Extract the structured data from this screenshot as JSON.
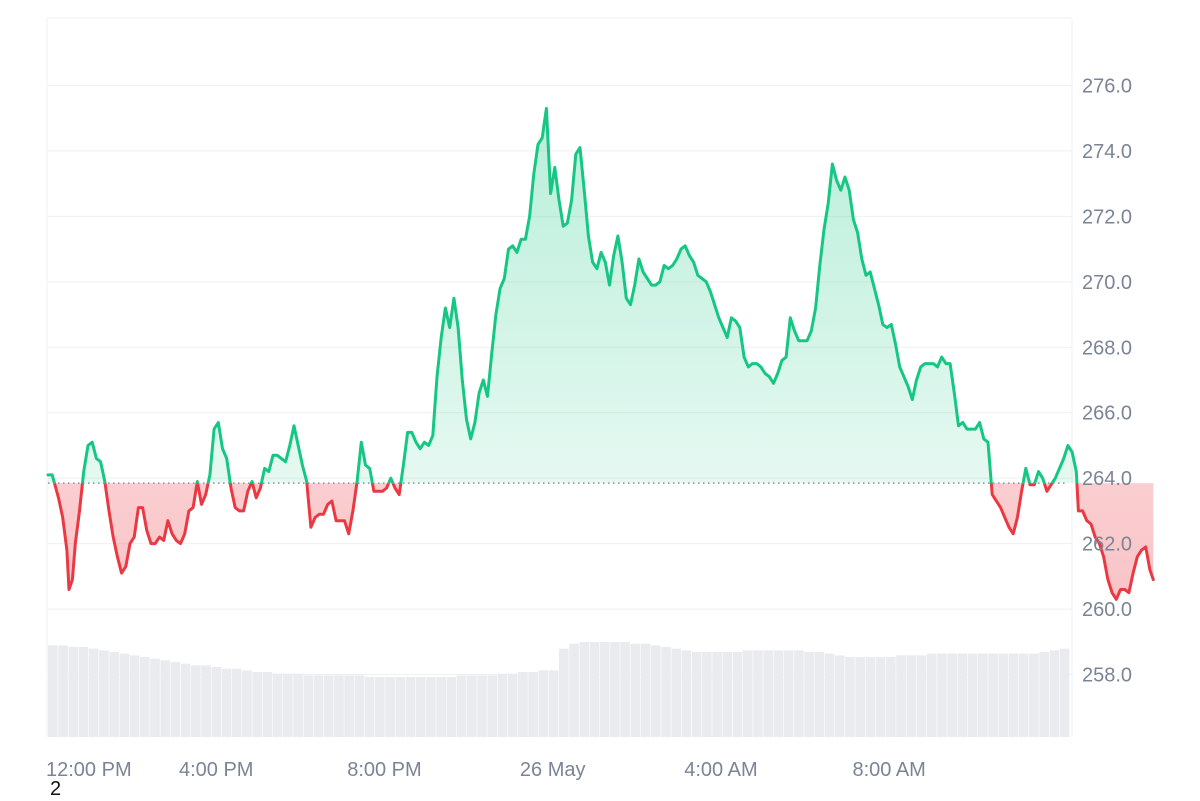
{
  "chart_data": {
    "type": "area",
    "baseline": 263.85,
    "ylim": [
      256,
      278
    ],
    "yticks": [
      "258.0",
      "260.0",
      "262.0",
      "264.0",
      "266.0",
      "268.0",
      "270.0",
      "272.0",
      "274.0",
      "276.0"
    ],
    "xticks": [
      {
        "label": "12:00 PM",
        "x": 0
      },
      {
        "label": "4:00 PM",
        "x": 4
      },
      {
        "label": "8:00 PM",
        "x": 8
      },
      {
        "label": "26 May",
        "x": 12
      },
      {
        "label": "4:00 AM",
        "x": 16
      },
      {
        "label": "8:00 AM",
        "x": 20
      }
    ],
    "xlim": [
      0,
      24.3
    ],
    "x_unit": "hours since 12:00 PM",
    "grid": true,
    "legend": "none",
    "colors": {
      "up": "#16c784",
      "down": "#ea3943",
      "baseline": "#8a8f99",
      "grid": "#eef0f3",
      "volume": "#e9ebef"
    },
    "series": [
      {
        "values": [
          [
            0.0,
            264.1
          ],
          [
            0.1,
            264.1
          ],
          [
            0.25,
            263.4
          ],
          [
            0.35,
            262.8
          ],
          [
            0.45,
            261.8
          ],
          [
            0.5,
            260.6
          ],
          [
            0.58,
            260.9
          ],
          [
            0.65,
            262.0
          ],
          [
            0.75,
            263.0
          ],
          [
            0.85,
            264.2
          ],
          [
            0.95,
            265.0
          ],
          [
            1.05,
            265.1
          ],
          [
            1.15,
            264.6
          ],
          [
            1.25,
            264.5
          ],
          [
            1.35,
            263.9
          ],
          [
            1.45,
            263.0
          ],
          [
            1.55,
            262.2
          ],
          [
            1.65,
            261.6
          ],
          [
            1.75,
            261.1
          ],
          [
            1.85,
            261.3
          ],
          [
            1.95,
            262.0
          ],
          [
            2.05,
            262.2
          ],
          [
            2.15,
            263.1
          ],
          [
            2.25,
            263.1
          ],
          [
            2.35,
            262.4
          ],
          [
            2.45,
            262.0
          ],
          [
            2.55,
            262.0
          ],
          [
            2.65,
            262.2
          ],
          [
            2.75,
            262.1
          ],
          [
            2.85,
            262.7
          ],
          [
            2.95,
            262.3
          ],
          [
            3.05,
            262.1
          ],
          [
            3.15,
            262.0
          ],
          [
            3.25,
            262.3
          ],
          [
            3.35,
            263.0
          ],
          [
            3.45,
            263.1
          ],
          [
            3.55,
            263.9
          ],
          [
            3.65,
            263.2
          ],
          [
            3.75,
            263.5
          ],
          [
            3.85,
            264.1
          ],
          [
            3.95,
            265.5
          ],
          [
            4.05,
            265.7
          ],
          [
            4.15,
            264.9
          ],
          [
            4.25,
            264.6
          ],
          [
            4.35,
            263.7
          ],
          [
            4.45,
            263.1
          ],
          [
            4.55,
            263.0
          ],
          [
            4.65,
            263.0
          ],
          [
            4.75,
            263.6
          ],
          [
            4.85,
            263.9
          ],
          [
            4.95,
            263.4
          ],
          [
            5.05,
            263.7
          ],
          [
            5.15,
            264.3
          ],
          [
            5.25,
            264.2
          ],
          [
            5.35,
            264.7
          ],
          [
            5.45,
            264.7
          ],
          [
            5.55,
            264.6
          ],
          [
            5.65,
            264.5
          ],
          [
            5.75,
            265.0
          ],
          [
            5.85,
            265.6
          ],
          [
            5.95,
            265.0
          ],
          [
            6.05,
            264.4
          ],
          [
            6.15,
            263.9
          ],
          [
            6.25,
            262.5
          ],
          [
            6.35,
            262.8
          ],
          [
            6.45,
            262.9
          ],
          [
            6.55,
            262.9
          ],
          [
            6.65,
            263.2
          ],
          [
            6.75,
            263.3
          ],
          [
            6.85,
            262.7
          ],
          [
            6.95,
            262.7
          ],
          [
            7.05,
            262.7
          ],
          [
            7.15,
            262.3
          ],
          [
            7.25,
            263.0
          ],
          [
            7.35,
            263.9
          ],
          [
            7.45,
            265.1
          ],
          [
            7.55,
            264.4
          ],
          [
            7.65,
            264.3
          ],
          [
            7.75,
            263.6
          ],
          [
            7.85,
            263.6
          ],
          [
            7.95,
            263.6
          ],
          [
            8.05,
            263.7
          ],
          [
            8.15,
            264.0
          ],
          [
            8.25,
            263.7
          ],
          [
            8.35,
            263.5
          ],
          [
            8.45,
            264.4
          ],
          [
            8.55,
            265.4
          ],
          [
            8.65,
            265.4
          ],
          [
            8.75,
            265.1
          ],
          [
            8.85,
            264.9
          ],
          [
            8.95,
            265.1
          ],
          [
            9.05,
            265.0
          ],
          [
            9.15,
            265.3
          ],
          [
            9.25,
            267.1
          ],
          [
            9.35,
            268.3
          ],
          [
            9.45,
            269.2
          ],
          [
            9.55,
            268.6
          ],
          [
            9.65,
            269.5
          ],
          [
            9.75,
            268.6
          ],
          [
            9.85,
            267.0
          ],
          [
            9.95,
            265.8
          ],
          [
            10.05,
            265.2
          ],
          [
            10.15,
            265.7
          ],
          [
            10.25,
            266.6
          ],
          [
            10.35,
            267.0
          ],
          [
            10.45,
            266.5
          ],
          [
            10.55,
            267.8
          ],
          [
            10.65,
            269.0
          ],
          [
            10.75,
            269.8
          ],
          [
            10.85,
            270.1
          ],
          [
            10.95,
            271.0
          ],
          [
            11.05,
            271.1
          ],
          [
            11.15,
            270.9
          ],
          [
            11.25,
            271.3
          ],
          [
            11.35,
            271.3
          ],
          [
            11.45,
            272.0
          ],
          [
            11.55,
            273.3
          ],
          [
            11.65,
            274.2
          ],
          [
            11.75,
            274.4
          ],
          [
            11.85,
            275.3
          ],
          [
            11.95,
            272.7
          ],
          [
            12.05,
            273.5
          ],
          [
            12.15,
            272.5
          ],
          [
            12.25,
            271.7
          ],
          [
            12.35,
            271.8
          ],
          [
            12.45,
            272.5
          ],
          [
            12.55,
            273.9
          ],
          [
            12.65,
            274.1
          ],
          [
            12.75,
            272.8
          ],
          [
            12.85,
            271.4
          ],
          [
            12.95,
            270.6
          ],
          [
            13.05,
            270.4
          ],
          [
            13.15,
            270.9
          ],
          [
            13.25,
            270.6
          ],
          [
            13.35,
            269.9
          ],
          [
            13.45,
            270.8
          ],
          [
            13.55,
            271.4
          ],
          [
            13.65,
            270.6
          ],
          [
            13.75,
            269.5
          ],
          [
            13.85,
            269.3
          ],
          [
            13.95,
            269.9
          ],
          [
            14.05,
            270.7
          ],
          [
            14.15,
            270.3
          ],
          [
            14.25,
            270.1
          ],
          [
            14.35,
            269.9
          ],
          [
            14.45,
            269.9
          ],
          [
            14.55,
            270.0
          ],
          [
            14.65,
            270.5
          ],
          [
            14.75,
            270.4
          ],
          [
            14.85,
            270.5
          ],
          [
            14.95,
            270.7
          ],
          [
            15.05,
            271.0
          ],
          [
            15.15,
            271.1
          ],
          [
            15.25,
            270.8
          ],
          [
            15.35,
            270.6
          ],
          [
            15.45,
            270.2
          ],
          [
            15.55,
            270.1
          ],
          [
            15.65,
            270.0
          ],
          [
            15.75,
            269.7
          ],
          [
            15.85,
            269.3
          ],
          [
            15.95,
            268.9
          ],
          [
            16.05,
            268.6
          ],
          [
            16.15,
            268.3
          ],
          [
            16.25,
            268.9
          ],
          [
            16.35,
            268.8
          ],
          [
            16.45,
            268.6
          ],
          [
            16.55,
            267.7
          ],
          [
            16.65,
            267.4
          ],
          [
            16.75,
            267.5
          ],
          [
            16.85,
            267.5
          ],
          [
            16.95,
            267.4
          ],
          [
            17.05,
            267.2
          ],
          [
            17.15,
            267.1
          ],
          [
            17.25,
            266.9
          ],
          [
            17.35,
            267.2
          ],
          [
            17.45,
            267.6
          ],
          [
            17.55,
            267.7
          ],
          [
            17.65,
            268.9
          ],
          [
            17.75,
            268.5
          ],
          [
            17.85,
            268.2
          ],
          [
            17.95,
            268.2
          ],
          [
            18.05,
            268.2
          ],
          [
            18.15,
            268.5
          ],
          [
            18.25,
            269.2
          ],
          [
            18.35,
            270.5
          ],
          [
            18.45,
            271.6
          ],
          [
            18.55,
            272.4
          ],
          [
            18.65,
            273.6
          ],
          [
            18.75,
            273.1
          ],
          [
            18.85,
            272.8
          ],
          [
            18.95,
            273.2
          ],
          [
            19.05,
            272.8
          ],
          [
            19.15,
            271.9
          ],
          [
            19.25,
            271.5
          ],
          [
            19.35,
            270.7
          ],
          [
            19.45,
            270.2
          ],
          [
            19.55,
            270.3
          ],
          [
            19.65,
            269.8
          ],
          [
            19.75,
            269.3
          ],
          [
            19.85,
            268.7
          ],
          [
            19.95,
            268.6
          ],
          [
            20.05,
            268.7
          ],
          [
            20.15,
            268.1
          ],
          [
            20.25,
            267.4
          ],
          [
            20.35,
            267.1
          ],
          [
            20.45,
            266.8
          ],
          [
            20.55,
            266.4
          ],
          [
            20.65,
            267.0
          ],
          [
            20.75,
            267.4
          ],
          [
            20.85,
            267.5
          ],
          [
            20.95,
            267.5
          ],
          [
            21.05,
            267.5
          ],
          [
            21.15,
            267.4
          ],
          [
            21.25,
            267.7
          ],
          [
            21.35,
            267.5
          ],
          [
            21.45,
            267.5
          ],
          [
            21.55,
            266.6
          ],
          [
            21.65,
            265.6
          ],
          [
            21.75,
            265.7
          ],
          [
            21.85,
            265.5
          ],
          [
            21.95,
            265.5
          ],
          [
            22.05,
            265.5
          ],
          [
            22.15,
            265.7
          ],
          [
            22.25,
            265.2
          ],
          [
            22.35,
            265.1
          ],
          [
            22.45,
            263.5
          ],
          [
            22.55,
            263.3
          ],
          [
            22.65,
            263.1
          ],
          [
            22.75,
            262.8
          ],
          [
            22.85,
            262.5
          ],
          [
            22.95,
            262.3
          ],
          [
            23.05,
            262.8
          ],
          [
            23.15,
            263.6
          ],
          [
            23.25,
            264.3
          ],
          [
            23.35,
            263.8
          ],
          [
            23.45,
            263.8
          ],
          [
            23.55,
            264.2
          ],
          [
            23.65,
            264.0
          ],
          [
            23.75,
            263.6
          ],
          [
            23.85,
            263.8
          ],
          [
            23.95,
            264.0
          ],
          [
            24.05,
            264.3
          ],
          [
            24.15,
            264.6
          ],
          [
            24.25,
            265.0
          ],
          [
            24.35,
            264.8
          ],
          [
            24.45,
            264.2
          ],
          [
            24.5,
            263.0
          ],
          [
            24.6,
            263.0
          ],
          [
            24.7,
            262.7
          ],
          [
            24.8,
            262.6
          ],
          [
            24.9,
            262.2
          ],
          [
            25.0,
            262.0
          ],
          [
            25.1,
            261.6
          ],
          [
            25.2,
            260.9
          ],
          [
            25.3,
            260.5
          ],
          [
            25.4,
            260.3
          ],
          [
            25.5,
            260.6
          ],
          [
            25.6,
            260.6
          ],
          [
            25.7,
            260.5
          ],
          [
            25.8,
            261.1
          ],
          [
            25.9,
            261.6
          ],
          [
            26.0,
            261.8
          ],
          [
            26.1,
            261.9
          ],
          [
            26.2,
            261.2
          ],
          [
            26.28,
            260.9
          ]
        ]
      }
    ],
    "volume": [
      5.5,
      5.5,
      5.4,
      5.4,
      5.3,
      5.2,
      5.1,
      5.0,
      4.9,
      4.8,
      4.7,
      4.6,
      4.5,
      4.4,
      4.3,
      4.3,
      4.2,
      4.1,
      4.1,
      4.0,
      3.9,
      3.9,
      3.8,
      3.8,
      3.8,
      3.7,
      3.7,
      3.7,
      3.7,
      3.7,
      3.7,
      3.6,
      3.6,
      3.6,
      3.6,
      3.6,
      3.6,
      3.6,
      3.6,
      3.6,
      3.7,
      3.7,
      3.7,
      3.7,
      3.8,
      3.8,
      3.9,
      3.9,
      4.0,
      4.0,
      5.3,
      5.6,
      5.7,
      5.7,
      5.7,
      5.7,
      5.7,
      5.6,
      5.6,
      5.5,
      5.4,
      5.3,
      5.2,
      5.1,
      5.1,
      5.1,
      5.1,
      5.1,
      5.2,
      5.2,
      5.2,
      5.2,
      5.2,
      5.2,
      5.1,
      5.1,
      5.0,
      4.9,
      4.8,
      4.8,
      4.8,
      4.8,
      4.8,
      4.9,
      4.9,
      4.9,
      5.0,
      5.0,
      5.0,
      5.0,
      5.0,
      5.0,
      5.0,
      5.0,
      5.0,
      5.0,
      5.0,
      5.1,
      5.2,
      5.3
    ]
  }
}
